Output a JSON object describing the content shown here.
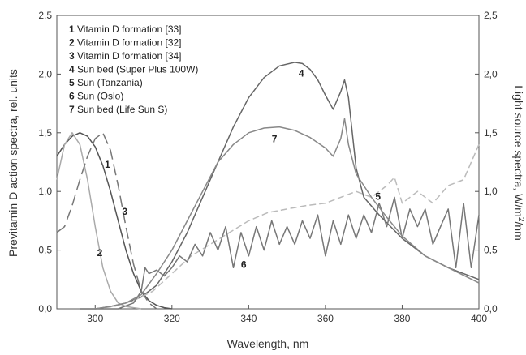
{
  "chart_data": {
    "type": "line",
    "xlabel": "Wavelength, nm",
    "ylabel_left": "Previtamin D action spectra, rel. units",
    "ylabel_right_parts": [
      "Light source spectra, W/m",
      "2",
      "/nm"
    ],
    "xlim": [
      290,
      400
    ],
    "ylim": [
      0,
      2.5
    ],
    "x_ticks": [
      300,
      320,
      340,
      360,
      380,
      400
    ],
    "y_ticks": [
      "0,0",
      "0,5",
      "1,0",
      "1,5",
      "2,0",
      "2,5"
    ],
    "legend_placement": "top-left",
    "legend": [
      {
        "num": "1",
        "label": "Vitamin D formation  [33]"
      },
      {
        "num": "2",
        "label": "Vitamin D formation [32]"
      },
      {
        "num": "3",
        "label": "Vitamin D formation [34]"
      },
      {
        "num": "4",
        "label": "Sun bed (Super Plus 100W)"
      },
      {
        "num": "5",
        "label": "Sun (Tanzania)"
      },
      {
        "num": "6",
        "label": "Sun (Oslo)"
      },
      {
        "num": "7",
        "label": "Sun bed (Life Sun S)"
      }
    ],
    "series": [
      {
        "name": "1",
        "label_at": [
          302.5,
          1.2
        ],
        "color": "#555555",
        "dash": "",
        "x": [
          290,
          292,
          294,
          296,
          298,
          300,
          302,
          304,
          306,
          308,
          310,
          312,
          314,
          316,
          318,
          320
        ],
        "y": [
          1.3,
          1.4,
          1.47,
          1.5,
          1.47,
          1.38,
          1.22,
          1.0,
          0.75,
          0.5,
          0.3,
          0.15,
          0.07,
          0.03,
          0.01,
          0.0
        ]
      },
      {
        "name": "2",
        "label_at": [
          300.5,
          0.45
        ],
        "color": "#aaaaaa",
        "dash": "",
        "x": [
          290,
          292,
          294,
          296,
          298,
          300,
          302,
          304,
          306,
          308,
          310,
          312
        ],
        "y": [
          1.1,
          1.4,
          1.5,
          1.4,
          1.1,
          0.7,
          0.35,
          0.15,
          0.05,
          0.02,
          0.01,
          0.0
        ]
      },
      {
        "name": "3",
        "label_at": [
          307,
          0.8
        ],
        "color": "#777777",
        "dash": "14,6",
        "x": [
          290,
          292,
          294,
          296,
          298,
          300,
          302,
          304,
          306,
          308,
          310,
          312,
          314,
          316
        ],
        "y": [
          0.65,
          0.7,
          0.88,
          1.1,
          1.3,
          1.45,
          1.5,
          1.35,
          1.05,
          0.7,
          0.38,
          0.15,
          0.05,
          0.0
        ]
      },
      {
        "name": "4",
        "label_at": [
          353,
          1.98
        ],
        "color": "#666666",
        "dash": "",
        "x": [
          296,
          300,
          304,
          308,
          312,
          316,
          320,
          324,
          328,
          332,
          336,
          340,
          344,
          348,
          352,
          354,
          356,
          358,
          360,
          362,
          364,
          365,
          366,
          368,
          370,
          374,
          380,
          386,
          392,
          400
        ],
        "y": [
          0.0,
          0.0,
          0.02,
          0.05,
          0.1,
          0.2,
          0.4,
          0.65,
          0.95,
          1.25,
          1.55,
          1.8,
          1.97,
          2.07,
          2.1,
          2.09,
          2.04,
          1.95,
          1.82,
          1.7,
          1.85,
          1.95,
          1.8,
          1.2,
          0.95,
          0.8,
          0.6,
          0.45,
          0.35,
          0.25
        ]
      },
      {
        "name": "5",
        "label_at": [
          373,
          0.93
        ],
        "color": "#bbbbbb",
        "dash": "8,4",
        "x": [
          300,
          305,
          310,
          315,
          320,
          325,
          330,
          335,
          340,
          345,
          350,
          355,
          360,
          364,
          368,
          372,
          376,
          378,
          380,
          384,
          388,
          392,
          396,
          400
        ],
        "y": [
          0.0,
          0.02,
          0.07,
          0.15,
          0.3,
          0.45,
          0.55,
          0.65,
          0.75,
          0.82,
          0.85,
          0.88,
          0.9,
          0.95,
          1.0,
          0.95,
          1.05,
          1.12,
          0.9,
          1.0,
          0.9,
          1.05,
          1.1,
          1.4
        ]
      },
      {
        "name": "6",
        "label_at": [
          338,
          0.35
        ],
        "color": "#777777",
        "dash": "",
        "x": [
          300,
          306,
          310,
          312,
          313,
          314,
          316,
          318,
          320,
          322,
          324,
          326,
          328,
          330,
          332,
          334,
          336,
          338,
          340,
          342,
          344,
          346,
          348,
          350,
          352,
          354,
          356,
          358,
          360,
          362,
          364,
          366,
          368,
          370,
          372,
          374,
          376,
          378,
          380,
          382,
          384,
          386,
          388,
          390,
          392,
          394,
          396,
          398,
          400
        ],
        "y": [
          0.0,
          0.0,
          0.05,
          0.15,
          0.35,
          0.3,
          0.33,
          0.28,
          0.35,
          0.45,
          0.4,
          0.55,
          0.45,
          0.65,
          0.5,
          0.7,
          0.35,
          0.65,
          0.45,
          0.7,
          0.5,
          0.75,
          0.55,
          0.7,
          0.55,
          0.75,
          0.6,
          0.8,
          0.45,
          0.75,
          0.55,
          0.8,
          0.6,
          0.8,
          0.65,
          0.9,
          0.7,
          0.95,
          0.6,
          0.85,
          0.7,
          0.85,
          0.55,
          0.7,
          0.85,
          0.35,
          0.9,
          0.35,
          0.8
        ]
      },
      {
        "name": "7",
        "label_at": [
          346,
          1.42
        ],
        "color": "#888888",
        "dash": "",
        "x": [
          296,
          300,
          304,
          308,
          312,
          316,
          320,
          324,
          328,
          332,
          336,
          340,
          344,
          348,
          352,
          356,
          360,
          362,
          364,
          365,
          366,
          368,
          372,
          376,
          380,
          386,
          392,
          400
        ],
        "y": [
          0.0,
          0.0,
          0.02,
          0.05,
          0.12,
          0.3,
          0.5,
          0.75,
          1.0,
          1.25,
          1.4,
          1.5,
          1.54,
          1.55,
          1.52,
          1.46,
          1.37,
          1.3,
          1.45,
          1.62,
          1.4,
          1.15,
          0.95,
          0.78,
          0.62,
          0.45,
          0.35,
          0.22
        ]
      }
    ]
  }
}
